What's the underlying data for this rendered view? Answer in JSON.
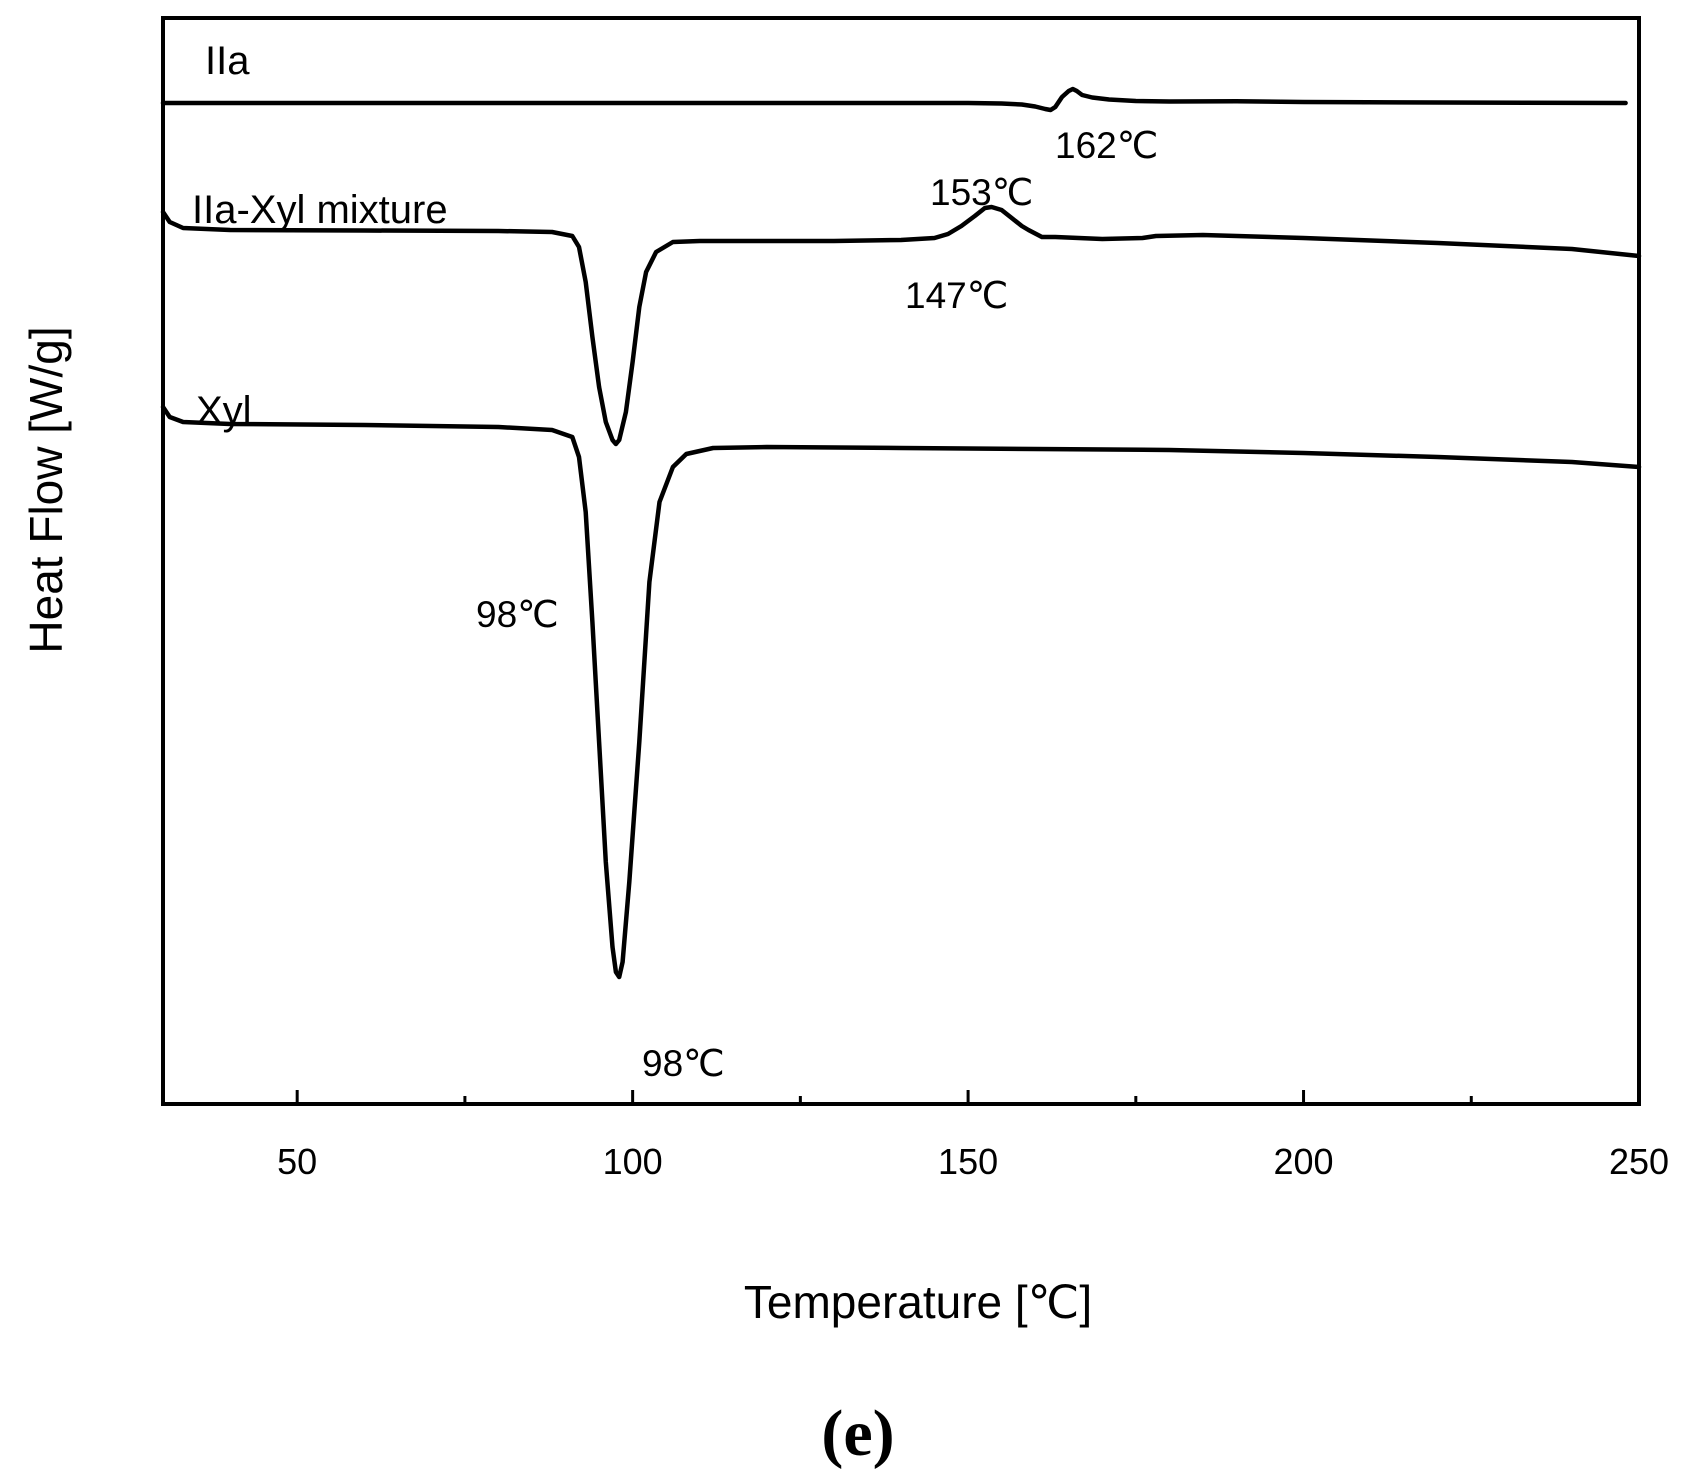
{
  "chart_data": {
    "type": "line",
    "xlabel": "Temperature [℃]",
    "ylabel": "Heat Flow [W/g]",
    "xlim": [
      30,
      250
    ],
    "xticks": [
      50,
      100,
      150,
      200,
      250
    ],
    "yticks_shown": false,
    "grid": false,
    "panel_label": "(e)",
    "y_units": "relative heat flow, arbitrary offset per curve",
    "series": [
      {
        "name": "IIa",
        "points": [
          [
            30,
            -11
          ],
          [
            60,
            -11
          ],
          [
            90,
            -11
          ],
          [
            120,
            -11
          ],
          [
            140,
            -11
          ],
          [
            150,
            -11
          ],
          [
            155,
            -11.5
          ],
          [
            158,
            -12.5
          ],
          [
            160,
            -14.5
          ],
          [
            161.5,
            -17
          ],
          [
            162.3,
            -18
          ],
          [
            163,
            -15
          ],
          [
            164,
            -5
          ],
          [
            165,
            1
          ],
          [
            165.6,
            3
          ],
          [
            166.2,
            1
          ],
          [
            167,
            -3
          ],
          [
            168.5,
            -5.5
          ],
          [
            171,
            -7.5
          ],
          [
            175,
            -9
          ],
          [
            180,
            -9.5
          ],
          [
            190,
            -9.3
          ],
          [
            200,
            -10
          ],
          [
            220,
            -10.5
          ],
          [
            248,
            -11
          ]
        ],
        "annotations": [
          {
            "x": 162,
            "text": "162℃"
          }
        ]
      },
      {
        "name": "IIa-Xyl mixture",
        "points": [
          [
            30,
            -120
          ],
          [
            31,
            -130
          ],
          [
            33,
            -136
          ],
          [
            40,
            -138
          ],
          [
            60,
            -138.5
          ],
          [
            80,
            -139
          ],
          [
            88,
            -140
          ],
          [
            91,
            -144
          ],
          [
            92,
            -155
          ],
          [
            93,
            -190
          ],
          [
            94,
            -245
          ],
          [
            95,
            -295
          ],
          [
            96,
            -330
          ],
          [
            97,
            -348
          ],
          [
            97.5,
            -352
          ],
          [
            98,
            -348
          ],
          [
            99,
            -320
          ],
          [
            100,
            -270
          ],
          [
            101,
            -215
          ],
          [
            102,
            -180
          ],
          [
            103.5,
            -160
          ],
          [
            106,
            -150
          ],
          [
            110,
            -149
          ],
          [
            120,
            -149
          ],
          [
            130,
            -149
          ],
          [
            140,
            -148
          ],
          [
            145,
            -146
          ],
          [
            147,
            -142
          ],
          [
            149,
            -134
          ],
          [
            151,
            -124
          ],
          [
            152.5,
            -116
          ],
          [
            153.5,
            -115
          ],
          [
            155,
            -118
          ],
          [
            156.5,
            -126
          ],
          [
            158,
            -134
          ],
          [
            159,
            -138
          ],
          [
            161,
            -145
          ],
          [
            163,
            -145
          ],
          [
            170,
            -147
          ],
          [
            176,
            -146
          ],
          [
            178,
            -144
          ],
          [
            185,
            -143
          ],
          [
            200,
            -146
          ],
          [
            220,
            -151
          ],
          [
            240,
            -157
          ],
          [
            250,
            -164
          ]
        ],
        "annotations": [
          {
            "x": 153,
            "text": "153℃"
          },
          {
            "x": 147,
            "text": "147℃"
          },
          {
            "x": 98,
            "text": "98℃"
          }
        ]
      },
      {
        "name": "Xyl",
        "points": [
          [
            30,
            -315
          ],
          [
            31,
            -325
          ],
          [
            33,
            -330
          ],
          [
            40,
            -332
          ],
          [
            60,
            -333
          ],
          [
            80,
            -335
          ],
          [
            88,
            -338
          ],
          [
            91,
            -345
          ],
          [
            92,
            -365
          ],
          [
            93,
            -420
          ],
          [
            94,
            -530
          ],
          [
            95,
            -650
          ],
          [
            96,
            -770
          ],
          [
            97,
            -855
          ],
          [
            97.5,
            -880
          ],
          [
            98,
            -885
          ],
          [
            98.5,
            -870
          ],
          [
            99.5,
            -790
          ],
          [
            101,
            -650
          ],
          [
            102.5,
            -490
          ],
          [
            104,
            -410
          ],
          [
            106,
            -375
          ],
          [
            108,
            -362
          ],
          [
            112,
            -356
          ],
          [
            120,
            -355
          ],
          [
            140,
            -356
          ],
          [
            160,
            -357
          ],
          [
            180,
            -358
          ],
          [
            200,
            -361
          ],
          [
            220,
            -365
          ],
          [
            240,
            -370
          ],
          [
            250,
            -375
          ]
        ],
        "annotations": [
          {
            "x": 98,
            "text": "98℃"
          }
        ]
      }
    ]
  }
}
